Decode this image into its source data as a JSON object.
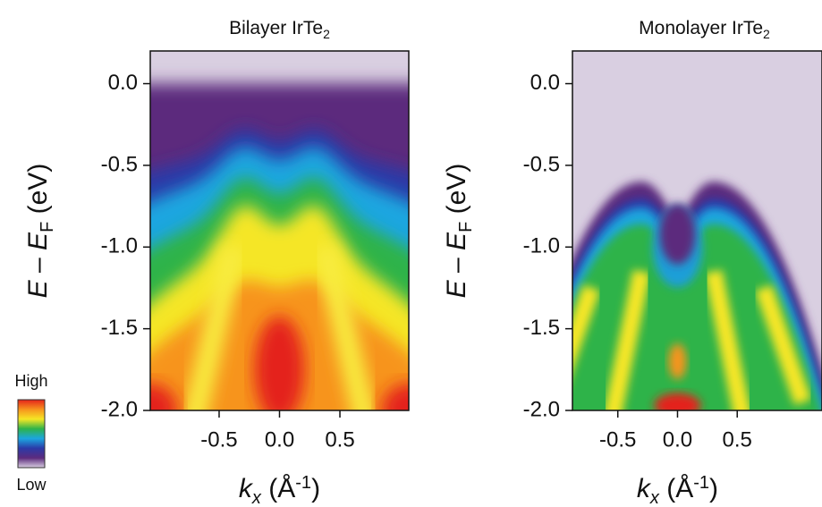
{
  "chart_data": [
    {
      "type": "arpes-map",
      "title": [
        "Bilayer IrTe",
        "2"
      ],
      "xlabel": [
        "k",
        "x",
        " (Å",
        "-1",
        ")"
      ],
      "ylabel": [
        "E",
        " – ",
        "E",
        "F",
        " (eV)"
      ],
      "xlim": [
        -1.07,
        1.07
      ],
      "ylim": [
        -2.0,
        0.2
      ],
      "xticks": [
        -0.5,
        {
          "value": 0,
          "label": "0.0"
        },
        0.5
      ],
      "yticks": [
        {
          "value": 0,
          "label": "0.0"
        },
        -0.5,
        {
          "value": -1,
          "label": "-1.0"
        },
        -1.5,
        {
          "value": -2,
          "label": "-2.0"
        }
      ],
      "colorbar_labels": [
        "High",
        "Low"
      ],
      "colorscale": [
        "#e4231c",
        "#f7941d",
        "#f5e625",
        "#2db34a",
        "#1ca6e0",
        "#2b3aa8",
        "#5c2b7d",
        "#d9cfe1"
      ]
    },
    {
      "type": "arpes-map",
      "title": [
        "Monolayer IrTe",
        "2"
      ],
      "xlabel": [
        "k",
        "x",
        " (Å",
        "-1",
        ")"
      ],
      "ylabel": [
        "E",
        " – ",
        "E",
        "F",
        " (eV)"
      ],
      "xlim": [
        -0.88,
        1.21
      ],
      "ylim": [
        -2.0,
        0.2
      ],
      "xticks": [
        -0.5,
        {
          "value": 0,
          "label": "0.0"
        },
        0.5
      ],
      "yticks": [
        {
          "value": 0,
          "label": "0.0"
        },
        -0.5,
        {
          "value": -1,
          "label": "-1.0"
        },
        -1.5,
        {
          "value": -2,
          "label": "-2.0"
        }
      ]
    }
  ]
}
